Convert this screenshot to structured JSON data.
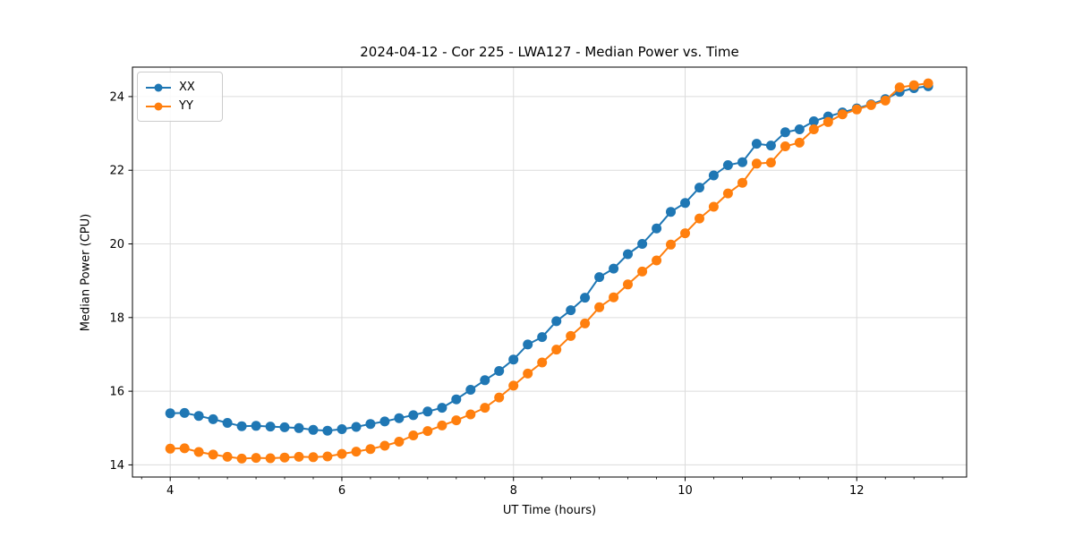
{
  "figure": {
    "title": "2024-04-12 - Cor 225 - LWA127 - Median Power vs. Time",
    "xlabel": "UT Time (hours)",
    "ylabel": "Median Power (CPU)",
    "background_color": "#ffffff",
    "spine_color": "#000000",
    "grid_color": "#dcdcdc"
  },
  "legend": {
    "position": "upper-left",
    "items": [
      {
        "label": "XX",
        "color": "#1f77b4"
      },
      {
        "label": "YY",
        "color": "#ff7f0e"
      }
    ]
  },
  "chart_data": {
    "type": "line",
    "title": "2024-04-12 - Cor 225 - LWA127 - Median Power vs. Time",
    "xlabel": "UT Time (hours)",
    "ylabel": "Median Power (CPU)",
    "xlim": [
      3.56,
      13.28
    ],
    "ylim": [
      13.67,
      24.8
    ],
    "grid": true,
    "legend_position": "upper left",
    "x_major_ticks": [
      4,
      6,
      8,
      10,
      12
    ],
    "x_major_tick_labels": [
      "4",
      "6",
      "8",
      "10",
      "12"
    ],
    "x_minor_tick_step": 0.3333,
    "y_major_ticks": [
      14,
      16,
      18,
      20,
      22,
      24
    ],
    "y_major_tick_labels": [
      "14",
      "16",
      "18",
      "20",
      "22",
      "24"
    ],
    "marker": "circle",
    "x": [
      4.0,
      4.167,
      4.333,
      4.5,
      4.667,
      4.833,
      5.0,
      5.167,
      5.333,
      5.5,
      5.667,
      5.833,
      6.0,
      6.167,
      6.333,
      6.5,
      6.667,
      6.833,
      7.0,
      7.167,
      7.333,
      7.5,
      7.667,
      7.833,
      8.0,
      8.167,
      8.333,
      8.5,
      8.667,
      8.833,
      9.0,
      9.167,
      9.333,
      9.5,
      9.667,
      9.833,
      10.0,
      10.167,
      10.333,
      10.5,
      10.667,
      10.833,
      11.0,
      11.167,
      11.333,
      11.5,
      11.667,
      11.833,
      12.0,
      12.167,
      12.333,
      12.5,
      12.667,
      12.833
    ],
    "series": [
      {
        "name": "XX",
        "color": "#1f77b4",
        "values": [
          15.4,
          15.41,
          15.33,
          15.24,
          15.14,
          15.05,
          15.06,
          15.04,
          15.02,
          15.0,
          14.95,
          14.93,
          14.97,
          15.03,
          15.11,
          15.18,
          15.27,
          15.35,
          15.45,
          15.55,
          15.78,
          16.04,
          16.3,
          16.55,
          16.86,
          17.27,
          17.47,
          17.9,
          18.2,
          18.54,
          19.1,
          19.33,
          19.72,
          20.0,
          20.42,
          20.87,
          21.11,
          21.53,
          21.86,
          22.14,
          22.22,
          22.72,
          22.67,
          23.03,
          23.11,
          23.33,
          23.46,
          23.57,
          23.68,
          23.79,
          23.93,
          24.13,
          24.23,
          24.28
        ]
      },
      {
        "name": "YY",
        "color": "#ff7f0e",
        "values": [
          14.44,
          14.45,
          14.35,
          14.28,
          14.22,
          14.17,
          14.19,
          14.18,
          14.2,
          14.22,
          14.21,
          14.23,
          14.3,
          14.36,
          14.43,
          14.52,
          14.63,
          14.8,
          14.92,
          15.07,
          15.21,
          15.37,
          15.55,
          15.83,
          16.15,
          16.48,
          16.78,
          17.13,
          17.5,
          17.84,
          18.28,
          18.55,
          18.9,
          19.25,
          19.55,
          19.98,
          20.29,
          20.69,
          21.01,
          21.37,
          21.66,
          22.18,
          22.21,
          22.65,
          22.75,
          23.11,
          23.31,
          23.52,
          23.65,
          23.77,
          23.89,
          24.25,
          24.31,
          24.36
        ]
      }
    ]
  }
}
